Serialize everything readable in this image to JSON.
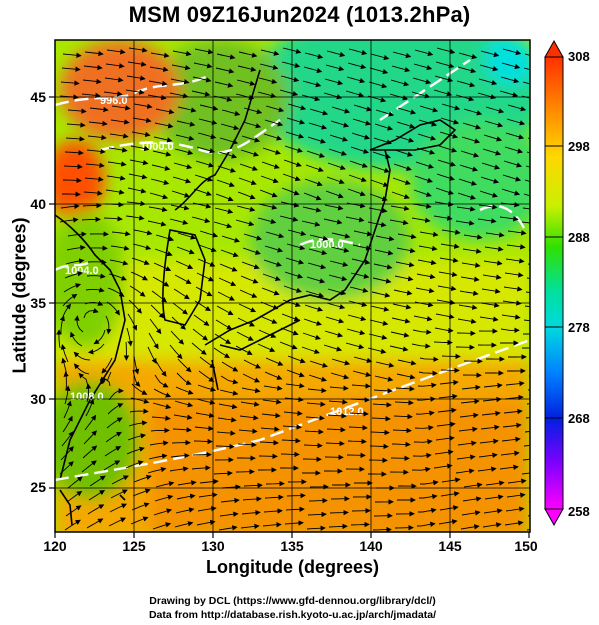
{
  "title": "MSM 09Z16Jun2024 (1013.2hPa)",
  "axes": {
    "xlabel": "Longitude (degrees)",
    "ylabel": "Latitude  (degrees)",
    "x_ticks": [
      "120",
      "125",
      "130",
      "135",
      "140",
      "145",
      "150"
    ],
    "y_ticks": [
      "25",
      "30",
      "35",
      "40",
      "45"
    ]
  },
  "colorbar": {
    "ticks": [
      "308",
      "298",
      "288",
      "278",
      "268",
      "258"
    ],
    "min": 258,
    "max": 308
  },
  "contour_labels": [
    "996.0",
    "1000.0",
    "1000.0",
    "1004.0",
    "1008.0",
    "1012.0"
  ],
  "credits": {
    "line1": "Drawing by DCL (https://www.gfd-dennou.org/library/dcl/)",
    "line2": "Data from http://database.rish.kyoto-u.ac.jp/arch/jmadata/"
  },
  "chart_data": {
    "type": "heatmap",
    "title": "MSM 09Z16Jun2024 (1013.2hPa)",
    "xlabel": "Longitude (degrees)",
    "ylabel": "Latitude  (degrees)",
    "xlim": [
      120,
      150
    ],
    "ylim": [
      22.4,
      47.6
    ],
    "colorbar_range": [
      258,
      308
    ],
    "colors": {
      "warm": "#ff6a00",
      "mid": "#ffd900",
      "cool": "#00ff6a",
      "ocean": "#d8f000"
    }
  }
}
